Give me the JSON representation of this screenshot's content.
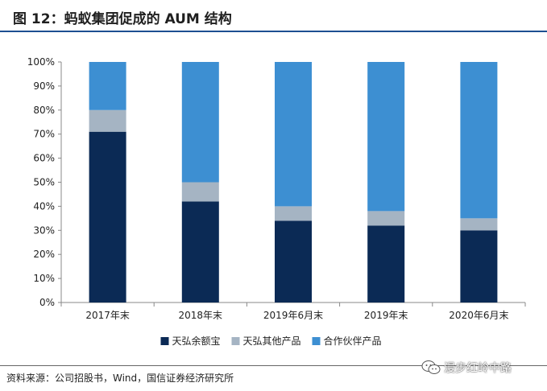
{
  "header": {
    "title": "图 12：蚂蚁集团促成的 AUM 结构"
  },
  "chart_data": {
    "type": "bar",
    "stacked": true,
    "categories": [
      "2017年末",
      "2018年末",
      "2019年6月末",
      "2019年末",
      "2020年6月末"
    ],
    "series": [
      {
        "name": "天弘余额宝",
        "color": "#0b2a55",
        "values": [
          71,
          42,
          34,
          32,
          30
        ]
      },
      {
        "name": "天弘其他产品",
        "color": "#a5b4c3",
        "values": [
          9,
          8,
          6,
          6,
          5
        ]
      },
      {
        "name": "合作伙伴产品",
        "color": "#3d8fd2",
        "values": [
          20,
          50,
          60,
          62,
          65
        ]
      }
    ],
    "y_ticks": [
      "0%",
      "10%",
      "20%",
      "30%",
      "40%",
      "50%",
      "60%",
      "70%",
      "80%",
      "90%",
      "100%"
    ],
    "ylim": [
      0,
      100
    ],
    "legend_position": "bottom",
    "grid": false
  },
  "footer": {
    "source": "资料来源：公司招股书，Wind，国信证券经济研究所",
    "watermark": "漫步红岭中路"
  }
}
